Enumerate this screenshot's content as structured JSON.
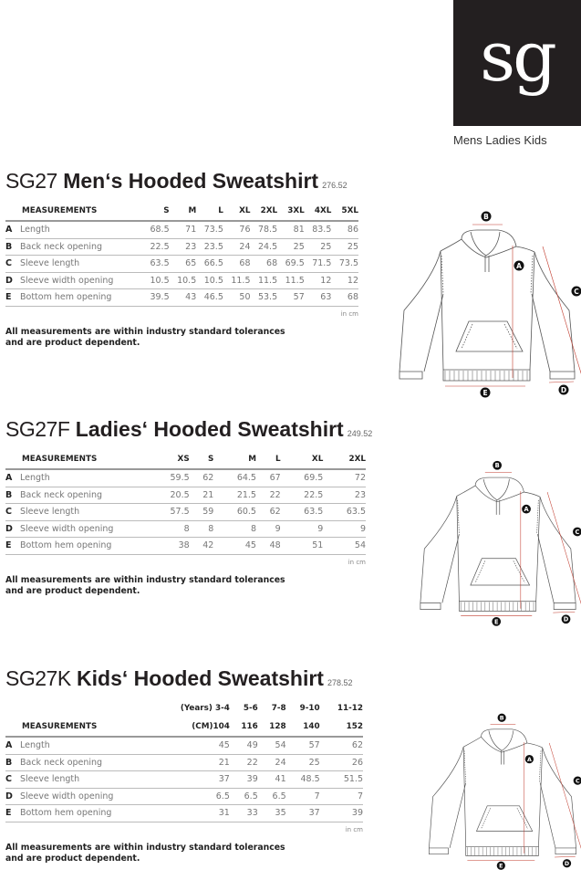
{
  "brand": {
    "logo_text": "sg",
    "categories": "Mens Ladies Kids"
  },
  "diagram_labels": [
    "A",
    "B",
    "C",
    "D",
    "E"
  ],
  "colors": {
    "logo_bg": "#231f20",
    "measure_line": "#c0392b"
  },
  "sections": [
    {
      "code": "SG27",
      "name": "Men‘s Hooded Sweatshirt",
      "number": "276.52",
      "header_label": "MEASUREMENTS",
      "sizes": [
        "S",
        "M",
        "L",
        "XL",
        "2XL",
        "3XL",
        "4XL",
        "5XL"
      ],
      "rows": [
        {
          "letter": "A",
          "label": "Length",
          "values": [
            "68.5",
            "71",
            "73.5",
            "76",
            "78.5",
            "81",
            "83.5",
            "86"
          ]
        },
        {
          "letter": "B",
          "label": "Back neck opening",
          "values": [
            "22.5",
            "23",
            "23.5",
            "24",
            "24.5",
            "25",
            "25",
            "25"
          ]
        },
        {
          "letter": "C",
          "label": "Sleeve length",
          "values": [
            "63.5",
            "65",
            "66.5",
            "68",
            "68",
            "69.5",
            "71.5",
            "73.5"
          ]
        },
        {
          "letter": "D",
          "label": "Sleeve width opening",
          "values": [
            "10.5",
            "10.5",
            "10.5",
            "11.5",
            "11.5",
            "11.5",
            "12",
            "12"
          ]
        },
        {
          "letter": "E",
          "label": "Bottom hem opening",
          "values": [
            "39.5",
            "43",
            "46.5",
            "50",
            "53.5",
            "57",
            "63",
            "68"
          ]
        }
      ],
      "unit": "in cm",
      "note": "All measurements are within industry standard tolerances and are product dependent."
    },
    {
      "code": "SG27F",
      "name": "Ladies‘ Hooded Sweatshirt",
      "number": "249.52",
      "header_label": "MEASUREMENTS",
      "sizes": [
        "XS",
        "S",
        "M",
        "L",
        "XL",
        "2XL"
      ],
      "rows": [
        {
          "letter": "A",
          "label": "Length",
          "values": [
            "59.5",
            "62",
            "64.5",
            "67",
            "69.5",
            "72"
          ]
        },
        {
          "letter": "B",
          "label": "Back neck opening",
          "values": [
            "20.5",
            "21",
            "21.5",
            "22",
            "22.5",
            "23"
          ]
        },
        {
          "letter": "C",
          "label": "Sleeve length",
          "values": [
            "57.5",
            "59",
            "60.5",
            "62",
            "63.5",
            "63.5"
          ]
        },
        {
          "letter": "D",
          "label": "Sleeve width opening",
          "values": [
            "8",
            "8",
            "8",
            "9",
            "9",
            "9"
          ]
        },
        {
          "letter": "E",
          "label": "Bottom hem opening",
          "values": [
            "38",
            "42",
            "45",
            "48",
            "51",
            "54"
          ]
        }
      ],
      "unit": "in cm",
      "note": "All measurements are within industry standard tolerances and are product dependent."
    },
    {
      "code": "SG27K",
      "name": "Kids‘ Hooded Sweatshirt",
      "number": "278.52",
      "header_label": "MEASUREMENTS",
      "years": [
        "(Years) 3-4",
        "5-6",
        "7-8",
        "9-10",
        "11-12"
      ],
      "sizes": [
        "(CM)104",
        "116",
        "128",
        "140",
        "152"
      ],
      "rows": [
        {
          "letter": "A",
          "label": "Length",
          "values": [
            "45",
            "49",
            "54",
            "57",
            "62"
          ]
        },
        {
          "letter": "B",
          "label": "Back neck opening",
          "values": [
            "21",
            "22",
            "24",
            "25",
            "26"
          ]
        },
        {
          "letter": "C",
          "label": "Sleeve length",
          "values": [
            "37",
            "39",
            "41",
            "48.5",
            "51.5"
          ]
        },
        {
          "letter": "D",
          "label": "Sleeve width opening",
          "values": [
            "6.5",
            "6.5",
            "6.5",
            "7",
            "7"
          ]
        },
        {
          "letter": "E",
          "label": "Bottom hem opening",
          "values": [
            "31",
            "33",
            "35",
            "37",
            "39"
          ]
        }
      ],
      "unit": "in cm",
      "note": "All measurements are within industry standard tolerances and are product dependent."
    }
  ]
}
